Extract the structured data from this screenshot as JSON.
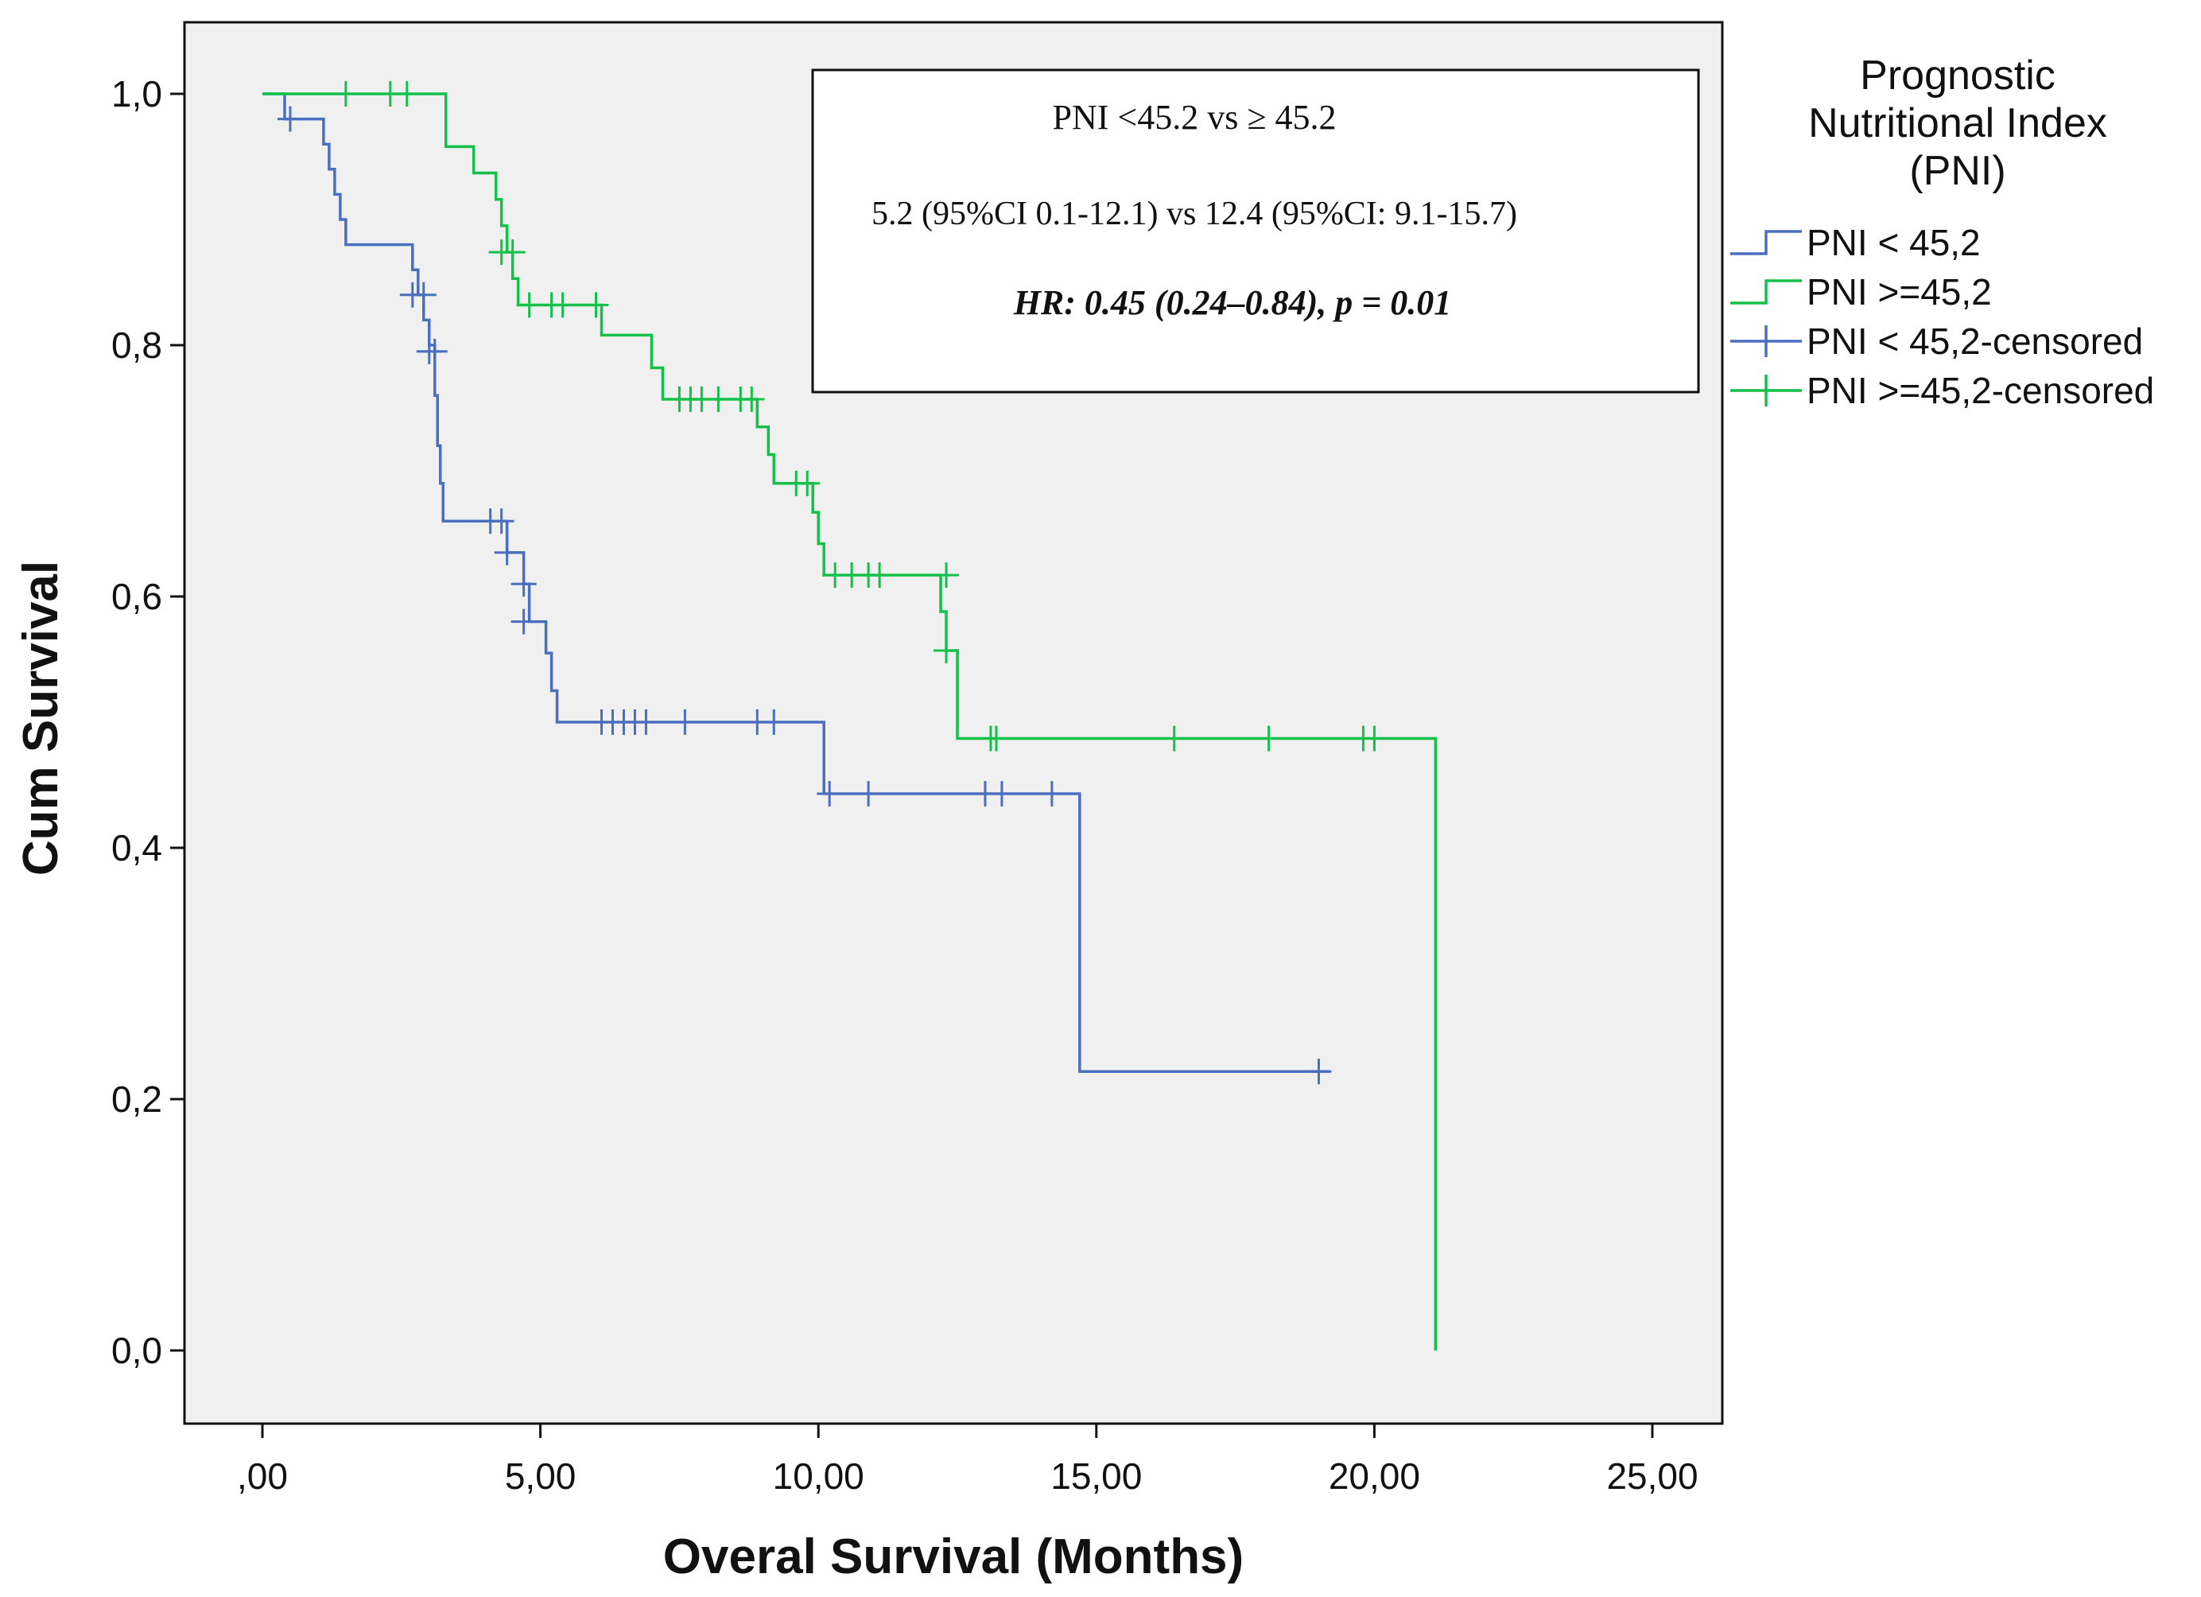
{
  "chart_data": {
    "type": "line",
    "subtype": "kaplan-meier",
    "title": "",
    "xlabel": "Overal Survival (Months)",
    "ylabel": "Cum Survival",
    "xlim": [
      0,
      25
    ],
    "ylim": [
      0,
      1
    ],
    "x_ticks": [
      {
        "value": 0,
        "label": ",00"
      },
      {
        "value": 5,
        "label": "5,00"
      },
      {
        "value": 10,
        "label": "10,00"
      },
      {
        "value": 15,
        "label": "15,00"
      },
      {
        "value": 20,
        "label": "20,00"
      },
      {
        "value": 25,
        "label": "25,00"
      }
    ],
    "y_ticks": [
      {
        "value": 0,
        "label": "0,0"
      },
      {
        "value": 0.2,
        "label": "0,2"
      },
      {
        "value": 0.4,
        "label": "0,4"
      },
      {
        "value": 0.6,
        "label": "0,6"
      },
      {
        "value": 0.8,
        "label": "0,8"
      },
      {
        "value": 1.0,
        "label": "1,0"
      }
    ],
    "grid": false,
    "background": "#f0f0f0",
    "legend": {
      "placement": "right",
      "title": "Prognostic Nutritional Index (PNI)",
      "title_lines": [
        "Prognostic",
        "Nutritional Index",
        "(PNI)"
      ],
      "entries": [
        {
          "label": "PNI < 45,2",
          "kind": "step",
          "color": "#4a6fbe"
        },
        {
          "label": "PNI >=45,2",
          "kind": "step",
          "color": "#13c04a"
        },
        {
          "label": "PNI < 45,2-censored",
          "kind": "censor",
          "color": "#4a6fbe"
        },
        {
          "label": "PNI >=45,2-censored",
          "kind": "censor",
          "color": "#13c04a"
        }
      ]
    },
    "annotation": {
      "line1": "PNI <45.2 vs ≥ 45.2",
      "line2": "5.2 (95%CI 0.1-12.1) vs 12.4 (95%CI: 9.1-15.7)",
      "line3": "HR: 0.45 (0.24–0.84), p = 0.01"
    },
    "series": [
      {
        "name": "PNI < 45,2",
        "color": "#4a6fbe",
        "steps": [
          [
            0,
            1.0
          ],
          [
            0.4,
            0.98
          ],
          [
            1.1,
            0.96
          ],
          [
            1.2,
            0.94
          ],
          [
            1.3,
            0.92
          ],
          [
            1.4,
            0.9
          ],
          [
            1.5,
            0.88
          ],
          [
            2.7,
            0.86
          ],
          [
            2.8,
            0.84
          ],
          [
            2.9,
            0.82
          ],
          [
            3.0,
            0.8
          ],
          [
            3.1,
            0.76
          ],
          [
            3.15,
            0.72
          ],
          [
            3.2,
            0.69
          ],
          [
            3.25,
            0.66
          ],
          [
            4.4,
            0.635
          ],
          [
            4.7,
            0.61
          ],
          [
            4.8,
            0.58
          ],
          [
            5.1,
            0.555
          ],
          [
            5.2,
            0.525
          ],
          [
            5.3,
            0.5
          ],
          [
            10.1,
            0.443
          ],
          [
            14.7,
            0.222
          ]
        ],
        "end_x": 19.2,
        "censored": [
          {
            "x": 0.5,
            "y": 0.98
          },
          {
            "x": 2.7,
            "y": 0.84
          },
          {
            "x": 2.9,
            "y": 0.84
          },
          {
            "x": 3.0,
            "y": 0.795
          },
          {
            "x": 3.1,
            "y": 0.795
          },
          {
            "x": 4.1,
            "y": 0.66
          },
          {
            "x": 4.3,
            "y": 0.66
          },
          {
            "x": 4.4,
            "y": 0.635
          },
          {
            "x": 4.7,
            "y": 0.61
          },
          {
            "x": 4.7,
            "y": 0.58
          },
          {
            "x": 6.1,
            "y": 0.5
          },
          {
            "x": 6.3,
            "y": 0.5
          },
          {
            "x": 6.5,
            "y": 0.5
          },
          {
            "x": 6.7,
            "y": 0.5
          },
          {
            "x": 6.9,
            "y": 0.5
          },
          {
            "x": 7.6,
            "y": 0.5
          },
          {
            "x": 8.9,
            "y": 0.5
          },
          {
            "x": 9.2,
            "y": 0.5
          },
          {
            "x": 10.2,
            "y": 0.443
          },
          {
            "x": 10.9,
            "y": 0.443
          },
          {
            "x": 13.0,
            "y": 0.443
          },
          {
            "x": 13.3,
            "y": 0.443
          },
          {
            "x": 14.2,
            "y": 0.443
          },
          {
            "x": 19.0,
            "y": 0.222
          }
        ]
      },
      {
        "name": "PNI >=45,2",
        "color": "#13c04a",
        "steps": [
          [
            0,
            1.0
          ],
          [
            3.3,
            0.958
          ],
          [
            3.8,
            0.937
          ],
          [
            4.2,
            0.916
          ],
          [
            4.3,
            0.895
          ],
          [
            4.4,
            0.874
          ],
          [
            4.5,
            0.853
          ],
          [
            4.6,
            0.832
          ],
          [
            6.1,
            0.808
          ],
          [
            7.0,
            0.782
          ],
          [
            7.2,
            0.757
          ],
          [
            8.9,
            0.735
          ],
          [
            9.1,
            0.713
          ],
          [
            9.2,
            0.69
          ],
          [
            9.9,
            0.667
          ],
          [
            10.0,
            0.642
          ],
          [
            10.1,
            0.617
          ],
          [
            12.2,
            0.588
          ],
          [
            12.3,
            0.557
          ],
          [
            12.5,
            0.52
          ],
          [
            12.5,
            0.487
          ],
          [
            21.1,
            0.0
          ]
        ],
        "end_x": 21.1,
        "censored": [
          {
            "x": 1.5,
            "y": 1.0
          },
          {
            "x": 2.3,
            "y": 1.0
          },
          {
            "x": 2.6,
            "y": 1.0
          },
          {
            "x": 4.3,
            "y": 0.874
          },
          {
            "x": 4.5,
            "y": 0.874
          },
          {
            "x": 4.8,
            "y": 0.832
          },
          {
            "x": 5.2,
            "y": 0.832
          },
          {
            "x": 5.4,
            "y": 0.832
          },
          {
            "x": 6.0,
            "y": 0.832
          },
          {
            "x": 7.5,
            "y": 0.757
          },
          {
            "x": 7.7,
            "y": 0.757
          },
          {
            "x": 7.9,
            "y": 0.757
          },
          {
            "x": 8.2,
            "y": 0.757
          },
          {
            "x": 8.6,
            "y": 0.757
          },
          {
            "x": 8.8,
            "y": 0.757
          },
          {
            "x": 9.6,
            "y": 0.69
          },
          {
            "x": 9.8,
            "y": 0.69
          },
          {
            "x": 10.3,
            "y": 0.617
          },
          {
            "x": 10.6,
            "y": 0.617
          },
          {
            "x": 10.9,
            "y": 0.617
          },
          {
            "x": 11.1,
            "y": 0.617
          },
          {
            "x": 12.3,
            "y": 0.617
          },
          {
            "x": 12.3,
            "y": 0.557
          },
          {
            "x": 13.1,
            "y": 0.487
          },
          {
            "x": 13.2,
            "y": 0.487
          },
          {
            "x": 16.4,
            "y": 0.487
          },
          {
            "x": 18.1,
            "y": 0.487
          },
          {
            "x": 19.8,
            "y": 0.487
          },
          {
            "x": 20.0,
            "y": 0.487
          }
        ]
      }
    ]
  }
}
